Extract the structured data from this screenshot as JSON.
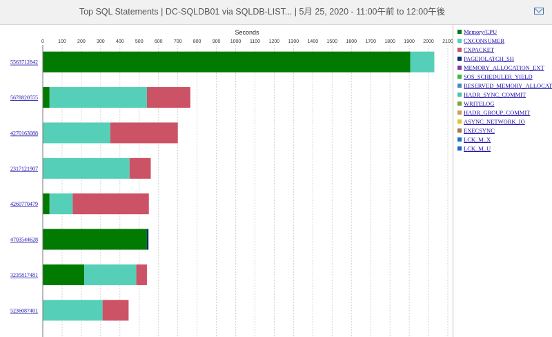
{
  "header": {
    "title": "Top SQL Statements   |   DC-SQLDB01 via SQLDB-LIST...   |   5月 25, 2020 - 11:00午前 to 12:00午後"
  },
  "icons": {
    "mail": "mail-icon"
  },
  "chart_data": {
    "type": "bar",
    "orientation": "horizontal",
    "stacked": true,
    "title": "",
    "xlabel": "Seconds",
    "ylabel": "",
    "xlim": [
      0,
      2100
    ],
    "x_ticks": [
      0,
      100,
      200,
      300,
      400,
      500,
      600,
      700,
      800,
      900,
      1000,
      1100,
      1200,
      1300,
      1400,
      1500,
      1600,
      1700,
      1800,
      1900,
      2000,
      2100
    ],
    "grid": true,
    "legend_position": "right",
    "categories": [
      "5563712842",
      "5678820555",
      "4270163088",
      "2317121907",
      "4260770479",
      "4703544628",
      "3235817481",
      "5236087401"
    ],
    "series": [
      {
        "name": "Memory/CPU",
        "color": "#007a00",
        "values": [
          1905,
          35,
          0,
          0,
          35,
          540,
          215,
          0
        ]
      },
      {
        "name": "CXCONSUMER",
        "color": "#55cfb7",
        "values": [
          125,
          505,
          350,
          450,
          120,
          0,
          270,
          310
        ]
      },
      {
        "name": "CXPACKET",
        "color": "#cc5266",
        "values": [
          0,
          225,
          350,
          110,
          395,
          0,
          55,
          135
        ]
      },
      {
        "name": "PAGEIOLATCH_SH",
        "color": "#0c2a78",
        "values": [
          0,
          0,
          0,
          0,
          0,
          8,
          0,
          0
        ]
      },
      {
        "name": "MEMORY_ALLOCATION_EXT",
        "color": "#7b3fa3",
        "values": [
          0,
          0,
          0,
          0,
          0,
          0,
          0,
          0
        ]
      },
      {
        "name": "SOS_SCHEDULER_YIELD",
        "color": "#3db843",
        "values": [
          0,
          0,
          0,
          0,
          0,
          0,
          0,
          0
        ]
      },
      {
        "name": "RESERVED_MEMORY_ALLOCATI",
        "color": "#4a86c8",
        "values": [
          0,
          0,
          0,
          0,
          0,
          0,
          0,
          0
        ]
      },
      {
        "name": "HADR_SYNC_COMMIT",
        "color": "#48c4b0",
        "values": [
          0,
          0,
          0,
          0,
          0,
          0,
          0,
          0
        ]
      },
      {
        "name": "WRITELOG",
        "color": "#74a839",
        "values": [
          0,
          0,
          0,
          0,
          0,
          0,
          0,
          0
        ]
      },
      {
        "name": "HADR_GROUP_COMMIT",
        "color": "#d29a5c",
        "values": [
          0,
          0,
          0,
          0,
          0,
          0,
          0,
          0
        ]
      },
      {
        "name": "ASYNC_NETWORK_IO",
        "color": "#d8c928",
        "values": [
          0,
          0,
          0,
          0,
          0,
          0,
          0,
          0
        ]
      },
      {
        "name": "EXECSYNC",
        "color": "#a3784d",
        "values": [
          0,
          0,
          0,
          0,
          0,
          0,
          0,
          0
        ]
      },
      {
        "name": "LCK_M_X",
        "color": "#1d6fcf",
        "values": [
          0,
          0,
          0,
          0,
          0,
          0,
          0,
          0
        ]
      },
      {
        "name": "LCK_M_U",
        "color": "#2266cc",
        "values": [
          0,
          0,
          0,
          0,
          0,
          0,
          0,
          0
        ]
      }
    ]
  }
}
